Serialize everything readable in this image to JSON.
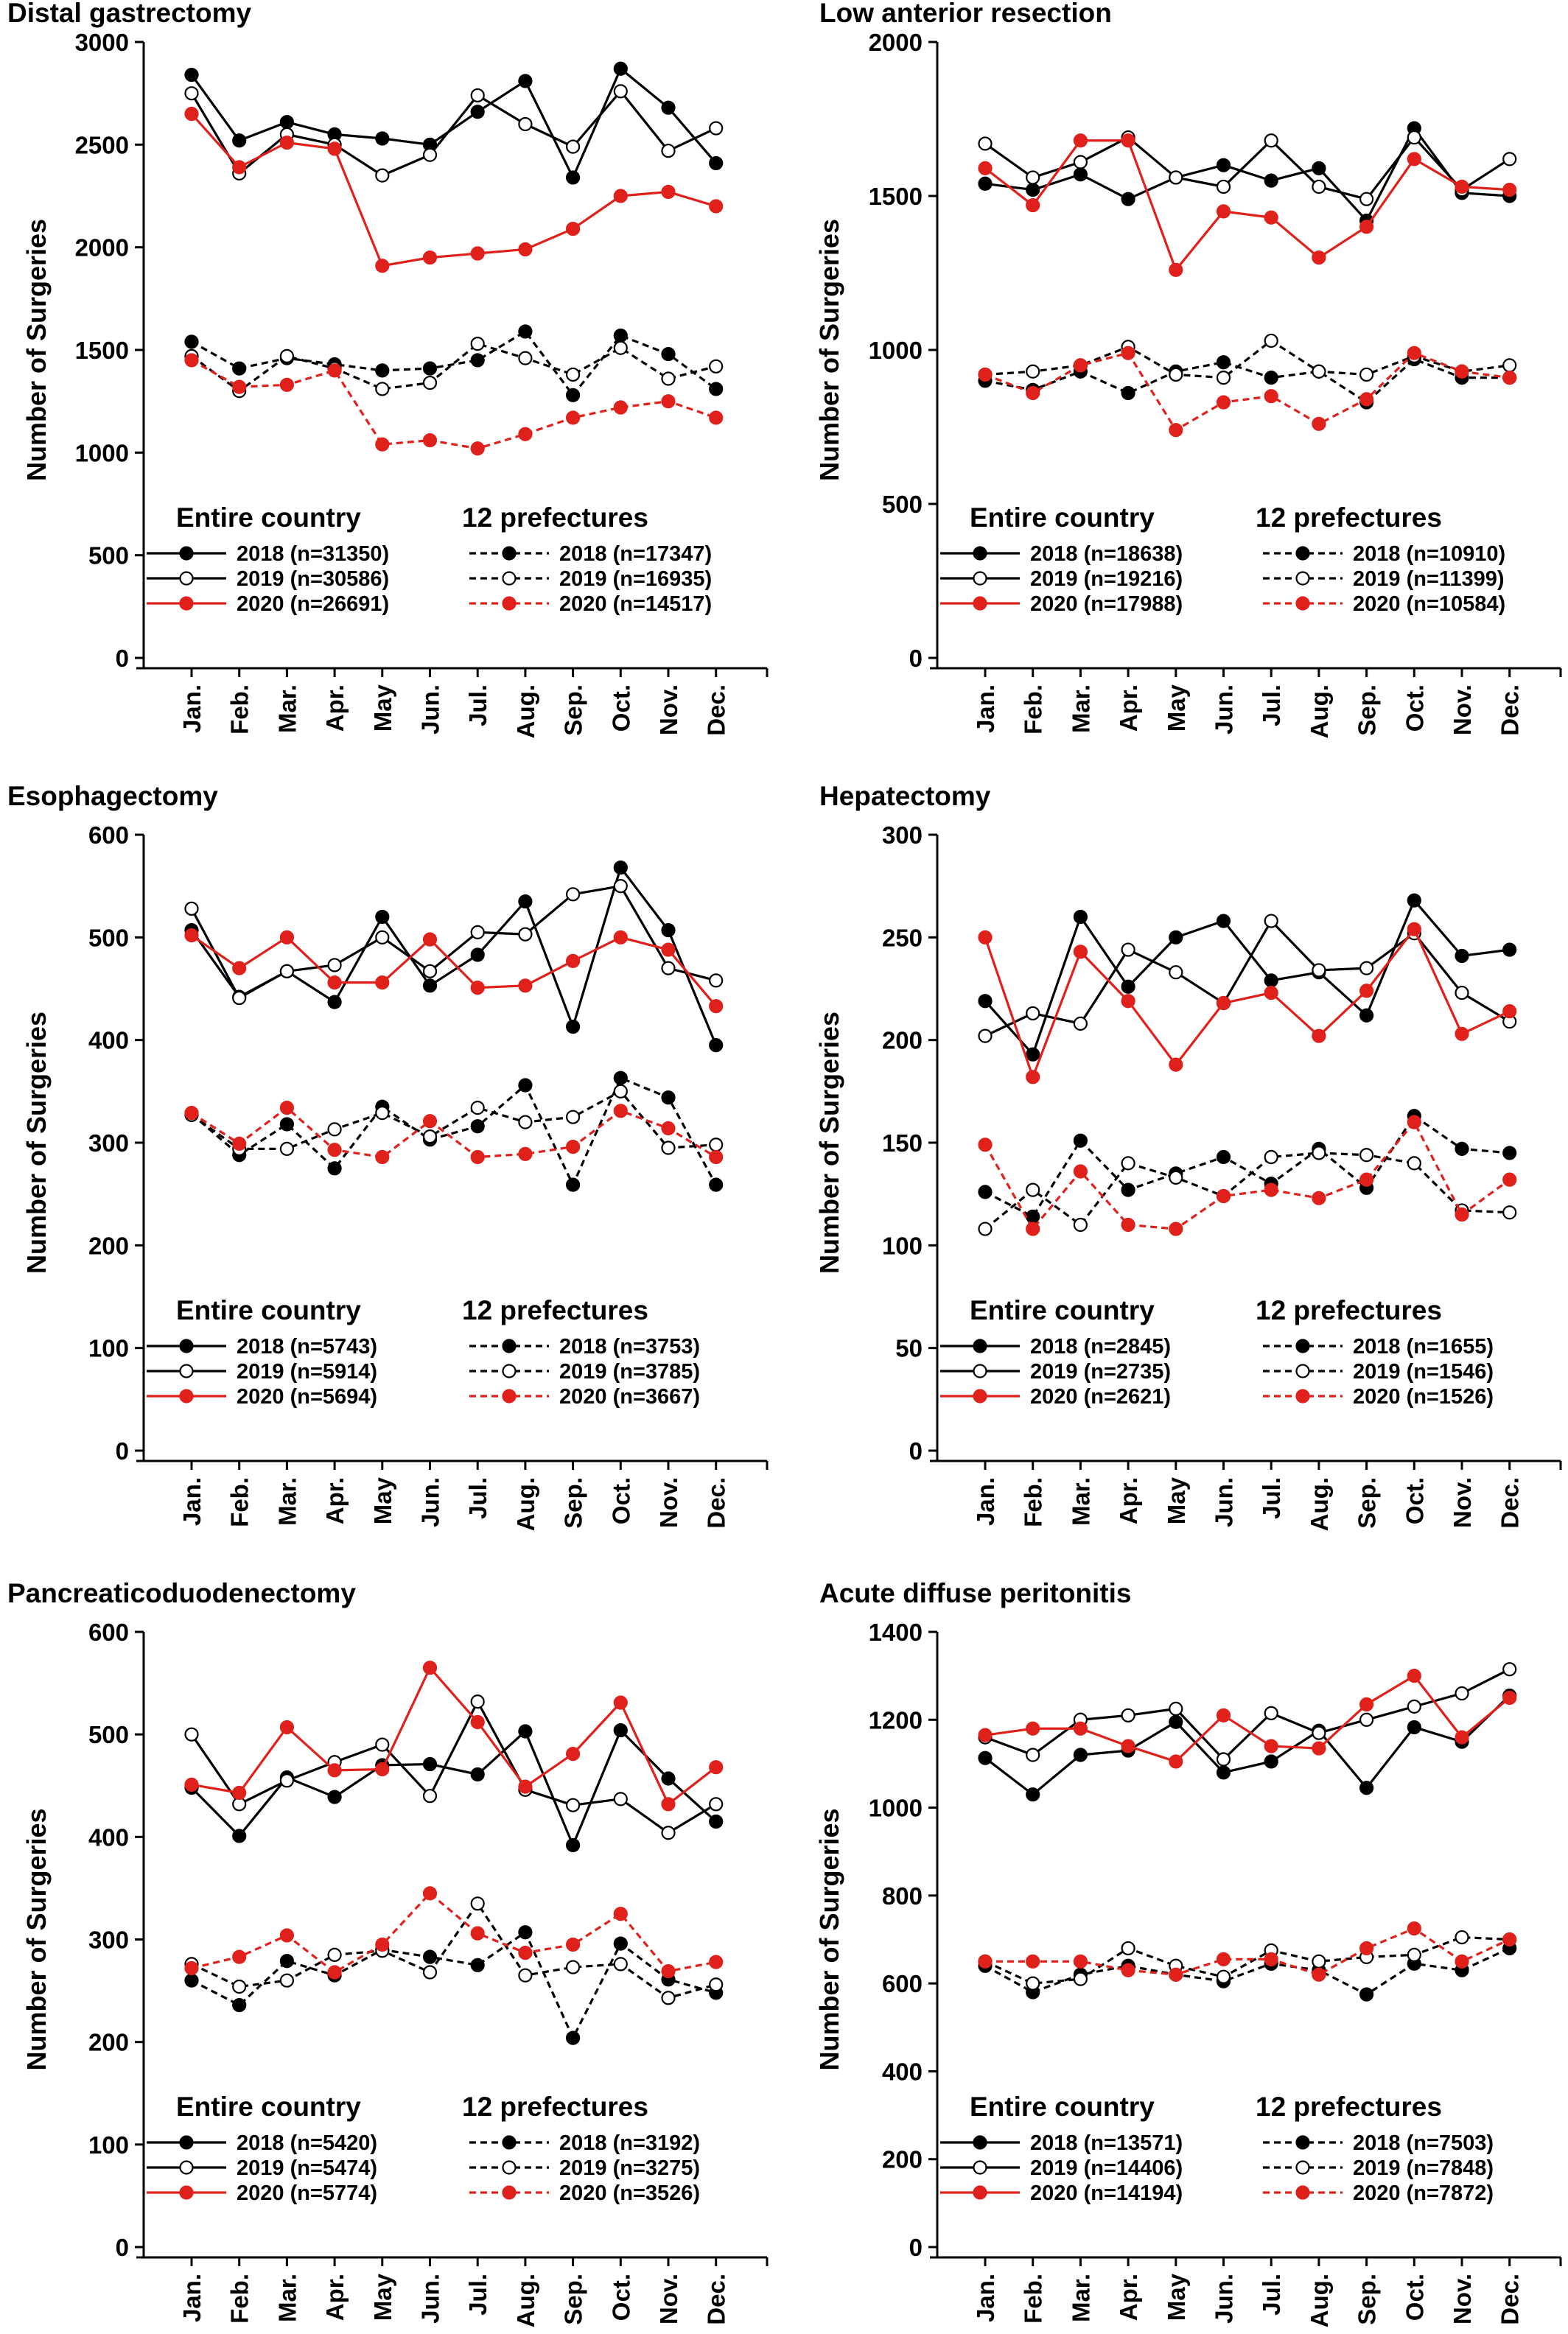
{
  "months": [
    "Jan.",
    "Feb.",
    "Mar.",
    "Apr.",
    "May",
    "Jun.",
    "Jul.",
    "Aug.",
    "Sep.",
    "Oct.",
    "Nov.",
    "Dec."
  ],
  "legend_headers": {
    "entire": "Entire country",
    "prefectures": "12 prefectures"
  },
  "years": [
    "2018",
    "2019",
    "2020"
  ],
  "colors": {
    "2018": "#000000",
    "2019": "#000000",
    "2020": "#e0201b"
  },
  "chart_data": [
    {
      "type": "line",
      "title": "Distal gastrectomy",
      "ylabel": "Number of Surgeries",
      "ylim": [
        0,
        3000
      ],
      "yticks": [
        0,
        500,
        1000,
        1500,
        2000,
        2500,
        3000
      ],
      "x": [
        "Jan.",
        "Feb.",
        "Mar.",
        "Apr.",
        "May",
        "Jun.",
        "Jul.",
        "Aug.",
        "Sep.",
        "Oct.",
        "Nov.",
        "Dec."
      ],
      "series": [
        {
          "name": "2018 (n=31350)",
          "group": "entire",
          "year": "2018",
          "values": [
            2840,
            2520,
            2610,
            2550,
            2530,
            2500,
            2660,
            2810,
            2340,
            2870,
            2680,
            2410
          ]
        },
        {
          "name": "2019 (n=30586)",
          "group": "entire",
          "year": "2019",
          "values": [
            2750,
            2360,
            2550,
            2500,
            2350,
            2450,
            2740,
            2600,
            2490,
            2760,
            2470,
            2580
          ]
        },
        {
          "name": "2020 (n=26691)",
          "group": "entire",
          "year": "2020",
          "values": [
            2650,
            2390,
            2510,
            2480,
            1910,
            1950,
            1970,
            1990,
            2090,
            2250,
            2270,
            2200
          ]
        },
        {
          "name": "2018 (n=17347)",
          "group": "prefectures",
          "year": "2018",
          "values": [
            1540,
            1410,
            1460,
            1430,
            1400,
            1410,
            1450,
            1590,
            1280,
            1570,
            1480,
            1310
          ]
        },
        {
          "name": "2019 (n=16935)",
          "group": "prefectures",
          "year": "2019",
          "values": [
            1470,
            1300,
            1470,
            1410,
            1310,
            1340,
            1530,
            1460,
            1380,
            1510,
            1360,
            1420
          ]
        },
        {
          "name": "2020 (n=14517)",
          "group": "prefectures",
          "year": "2020",
          "values": [
            1450,
            1320,
            1330,
            1400,
            1040,
            1060,
            1020,
            1090,
            1170,
            1220,
            1250,
            1170
          ]
        }
      ]
    },
    {
      "type": "line",
      "title": "Low anterior resection",
      "ylabel": "Number of Surgeries",
      "ylim": [
        0,
        2000
      ],
      "yticks": [
        0,
        500,
        1000,
        1500,
        2000
      ],
      "x": [
        "Jan.",
        "Feb.",
        "Mar.",
        "Apr.",
        "May",
        "Jun.",
        "Jul.",
        "Aug.",
        "Sep.",
        "Oct.",
        "Nov.",
        "Dec."
      ],
      "series": [
        {
          "name": "2018 (n=18638)",
          "group": "entire",
          "year": "2018",
          "values": [
            1540,
            1520,
            1570,
            1490,
            1560,
            1600,
            1550,
            1590,
            1420,
            1720,
            1510,
            1500
          ]
        },
        {
          "name": "2019 (n=19216)",
          "group": "entire",
          "year": "2019",
          "values": [
            1670,
            1560,
            1610,
            1690,
            1560,
            1530,
            1680,
            1530,
            1490,
            1690,
            1520,
            1620
          ]
        },
        {
          "name": "2020 (n=17988)",
          "group": "entire",
          "year": "2020",
          "values": [
            1590,
            1470,
            1680,
            1680,
            1260,
            1450,
            1430,
            1300,
            1400,
            1620,
            1530,
            1520
          ]
        },
        {
          "name": "2018 (n=10910)",
          "group": "prefectures",
          "year": "2018",
          "values": [
            900,
            870,
            930,
            860,
            930,
            960,
            910,
            930,
            830,
            970,
            910,
            910
          ]
        },
        {
          "name": "2019 (n=11399)",
          "group": "prefectures",
          "year": "2019",
          "values": [
            920,
            930,
            950,
            1010,
            920,
            910,
            1030,
            930,
            920,
            980,
            930,
            950
          ]
        },
        {
          "name": "2020 (n=10584)",
          "group": "prefectures",
          "year": "2020",
          "values": [
            920,
            860,
            950,
            990,
            740,
            830,
            850,
            760,
            840,
            990,
            930,
            910
          ]
        }
      ]
    },
    {
      "type": "line",
      "title": "Esophagectomy",
      "ylabel": "Number of Surgeries",
      "ylim": [
        0,
        600
      ],
      "yticks": [
        0,
        100,
        200,
        300,
        400,
        500,
        600
      ],
      "x": [
        "Jan.",
        "Feb.",
        "Mar.",
        "Apr.",
        "May",
        "Jun.",
        "Jul.",
        "Aug.",
        "Sep.",
        "Oct.",
        "Nov.",
        "Dec."
      ],
      "series": [
        {
          "name": "2018 (n=5743)",
          "group": "entire",
          "year": "2018",
          "values": [
            507,
            442,
            467,
            437,
            520,
            453,
            483,
            535,
            413,
            568,
            507,
            395
          ]
        },
        {
          "name": "2019 (n=5914)",
          "group": "entire",
          "year": "2019",
          "values": [
            528,
            441,
            467,
            473,
            500,
            467,
            505,
            503,
            542,
            550,
            470,
            458
          ]
        },
        {
          "name": "2020 (n=5694)",
          "group": "entire",
          "year": "2020",
          "values": [
            502,
            470,
            500,
            456,
            456,
            498,
            451,
            453,
            477,
            500,
            488,
            433
          ]
        },
        {
          "name": "2018 (n=3753)",
          "group": "prefectures",
          "year": "2018",
          "values": [
            328,
            288,
            318,
            275,
            335,
            303,
            316,
            356,
            259,
            363,
            344,
            259
          ]
        },
        {
          "name": "2019 (n=3785)",
          "group": "prefectures",
          "year": "2019",
          "values": [
            327,
            294,
            294,
            313,
            329,
            306,
            334,
            320,
            325,
            350,
            295,
            298
          ]
        },
        {
          "name": "2020 (n=3667)",
          "group": "prefectures",
          "year": "2020",
          "values": [
            329,
            299,
            334,
            293,
            286,
            321,
            286,
            289,
            296,
            331,
            314,
            286
          ]
        }
      ]
    },
    {
      "type": "line",
      "title": "Hepatectomy",
      "ylabel": "Number of Surgeries",
      "ylim": [
        0,
        300
      ],
      "yticks": [
        0,
        50,
        100,
        150,
        200,
        250,
        300
      ],
      "x": [
        "Jan.",
        "Feb.",
        "Mar.",
        "Apr.",
        "May",
        "Jun.",
        "Jul.",
        "Aug.",
        "Sep.",
        "Oct.",
        "Nov.",
        "Dec."
      ],
      "series": [
        {
          "name": "2018 (n=2845)",
          "group": "entire",
          "year": "2018",
          "values": [
            219,
            193,
            260,
            226,
            250,
            258,
            229,
            233,
            212,
            268,
            241,
            244
          ]
        },
        {
          "name": "2019 (n=2735)",
          "group": "entire",
          "year": "2019",
          "values": [
            202,
            213,
            208,
            244,
            233,
            218,
            258,
            234,
            235,
            252,
            223,
            209
          ]
        },
        {
          "name": "2020 (n=2621)",
          "group": "entire",
          "year": "2020",
          "values": [
            250,
            182,
            243,
            219,
            188,
            218,
            223,
            202,
            224,
            254,
            203,
            214
          ]
        },
        {
          "name": "2018 (n=1655)",
          "group": "prefectures",
          "year": "2018",
          "values": [
            126,
            114,
            151,
            127,
            135,
            143,
            130,
            147,
            128,
            163,
            147,
            145
          ]
        },
        {
          "name": "2019 (n=1546)",
          "group": "prefectures",
          "year": "2019",
          "values": [
            108,
            127,
            110,
            140,
            133,
            124,
            143,
            145,
            144,
            140,
            117,
            116
          ]
        },
        {
          "name": "2020 (n=1526)",
          "group": "prefectures",
          "year": "2020",
          "values": [
            149,
            108,
            136,
            110,
            108,
            124,
            127,
            123,
            132,
            160,
            115,
            132
          ]
        }
      ]
    },
    {
      "type": "line",
      "title": "Pancreaticoduodenectomy",
      "ylabel": "Number of Surgeries",
      "ylim": [
        0,
        600
      ],
      "yticks": [
        0,
        100,
        200,
        300,
        400,
        500,
        600
      ],
      "x": [
        "Jan.",
        "Feb.",
        "Mar.",
        "Apr.",
        "May",
        "Jun.",
        "Jul.",
        "Aug.",
        "Sep.",
        "Oct.",
        "Nov.",
        "Dec."
      ],
      "series": [
        {
          "name": "2018 (n=5420)",
          "group": "entire",
          "year": "2018",
          "values": [
            448,
            401,
            458,
            439,
            470,
            471,
            461,
            503,
            392,
            504,
            457,
            415
          ]
        },
        {
          "name": "2019 (n=5474)",
          "group": "entire",
          "year": "2019",
          "values": [
            500,
            432,
            455,
            473,
            490,
            440,
            532,
            446,
            431,
            437,
            404,
            432
          ]
        },
        {
          "name": "2020 (n=5774)",
          "group": "entire",
          "year": "2020",
          "values": [
            451,
            443,
            507,
            465,
            466,
            565,
            512,
            449,
            481,
            531,
            432,
            468
          ]
        },
        {
          "name": "2018 (n=3192)",
          "group": "prefectures",
          "year": "2018",
          "values": [
            260,
            236,
            279,
            265,
            290,
            283,
            275,
            307,
            204,
            296,
            261,
            248
          ]
        },
        {
          "name": "2019 (n=3275)",
          "group": "prefectures",
          "year": "2019",
          "values": [
            276,
            254,
            260,
            285,
            289,
            268,
            335,
            265,
            273,
            276,
            243,
            256
          ]
        },
        {
          "name": "2020 (n=3526)",
          "group": "prefectures",
          "year": "2020",
          "values": [
            272,
            283,
            304,
            268,
            295,
            345,
            306,
            287,
            295,
            325,
            269,
            278
          ]
        }
      ]
    },
    {
      "type": "line",
      "title": "Acute diffuse peritonitis",
      "ylabel": "Number of Surgeries",
      "ylim": [
        0,
        1400
      ],
      "yticks": [
        0,
        200,
        400,
        600,
        800,
        1000,
        1200,
        1400
      ],
      "x": [
        "Jan.",
        "Feb.",
        "Mar.",
        "Apr.",
        "May",
        "Jun.",
        "Jul.",
        "Aug.",
        "Sep.",
        "Oct.",
        "Nov.",
        "Dec."
      ],
      "series": [
        {
          "name": "2018 (n=13571)",
          "group": "entire",
          "year": "2018",
          "values": [
            1113,
            1030,
            1120,
            1130,
            1195,
            1080,
            1105,
            1175,
            1045,
            1183,
            1150,
            1255
          ]
        },
        {
          "name": "2019 (n=14406)",
          "group": "entire",
          "year": "2019",
          "values": [
            1160,
            1120,
            1200,
            1210,
            1225,
            1110,
            1215,
            1170,
            1200,
            1230,
            1260,
            1315
          ]
        },
        {
          "name": "2020 (n=14194)",
          "group": "entire",
          "year": "2020",
          "values": [
            1165,
            1180,
            1180,
            1140,
            1105,
            1210,
            1140,
            1135,
            1235,
            1300,
            1160,
            1250
          ]
        },
        {
          "name": "2018 (n=7503)",
          "group": "prefectures",
          "year": "2018",
          "values": [
            640,
            580,
            620,
            640,
            620,
            605,
            645,
            630,
            575,
            645,
            630,
            680
          ]
        },
        {
          "name": "2019 (n=7848)",
          "group": "prefectures",
          "year": "2019",
          "values": [
            650,
            600,
            610,
            680,
            640,
            615,
            675,
            650,
            660,
            665,
            705,
            700
          ]
        },
        {
          "name": "2020 (n=7872)",
          "group": "prefectures",
          "year": "2020",
          "values": [
            650,
            650,
            650,
            630,
            620,
            655,
            655,
            620,
            680,
            725,
            650,
            700
          ]
        }
      ]
    }
  ]
}
